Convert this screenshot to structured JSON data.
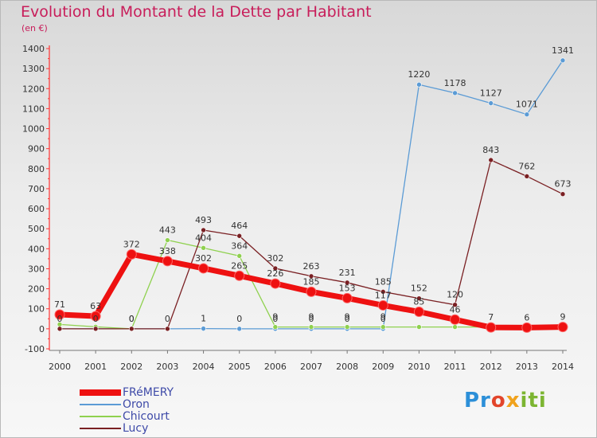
{
  "title": "Evolution du Montant de la Dette par Habitant",
  "unit": "(en €)",
  "logo": {
    "parts": [
      "Pr",
      "o",
      "x",
      "iti"
    ]
  },
  "chart_data": {
    "type": "line",
    "title": "Evolution du Montant de la Dette par Habitant",
    "ylabel": "(en €)",
    "xlabel": "",
    "ylim": [
      -100,
      1400
    ],
    "y_ticks": [
      -100,
      0,
      100,
      200,
      300,
      400,
      500,
      600,
      700,
      800,
      900,
      1000,
      1100,
      1200,
      1300,
      1400
    ],
    "x": [
      "2000",
      "2001",
      "2002",
      "2003",
      "2004",
      "2005",
      "2006",
      "2007",
      "2008",
      "2009",
      "2010",
      "2011",
      "2012",
      "2013",
      "2014"
    ],
    "grid": false,
    "legend_placement": "bottom-left",
    "series": [
      {
        "name": "FRéMERY",
        "color": "#ee1111",
        "values": [
          71,
          63,
          372,
          338,
          302,
          265,
          226,
          185,
          153,
          117,
          85,
          46,
          7,
          6,
          9
        ],
        "labels": [
          "71",
          "63",
          "372",
          "338",
          "302",
          "265",
          "226",
          "185",
          "153",
          "117",
          "85",
          "46",
          "7",
          "6",
          "9"
        ]
      },
      {
        "name": "Oron",
        "color": "#5b9bd5",
        "values": [
          0,
          0,
          0,
          0,
          1,
          0,
          0,
          0,
          0,
          0,
          1220,
          1178,
          1127,
          1071,
          1341
        ],
        "labels": [
          "0",
          "0",
          "0",
          "0",
          "1",
          "0",
          "0",
          "0",
          "0",
          "0",
          "1220",
          "1178",
          "1127",
          "1071",
          "1341"
        ]
      },
      {
        "name": "Chicourt",
        "color": "#8fd14f",
        "values": [
          22,
          10,
          0,
          443,
          404,
          364,
          9,
          9,
          9,
          9,
          9,
          9,
          9,
          9,
          9
        ],
        "labels": [
          "",
          "",
          "0",
          "443",
          "404",
          "364",
          "9",
          "9",
          "9",
          "9",
          "",
          "",
          "",
          "",
          ""
        ]
      },
      {
        "name": "Lucy",
        "color": "#7a2023",
        "values": [
          0,
          0,
          0,
          0,
          493,
          464,
          302,
          263,
          231,
          185,
          152,
          120,
          843,
          762,
          673
        ],
        "labels": [
          "",
          "",
          "",
          "",
          "493",
          "464",
          "302",
          "263",
          "231",
          "185",
          "152",
          "120",
          "843",
          "762",
          "673"
        ]
      }
    ]
  }
}
